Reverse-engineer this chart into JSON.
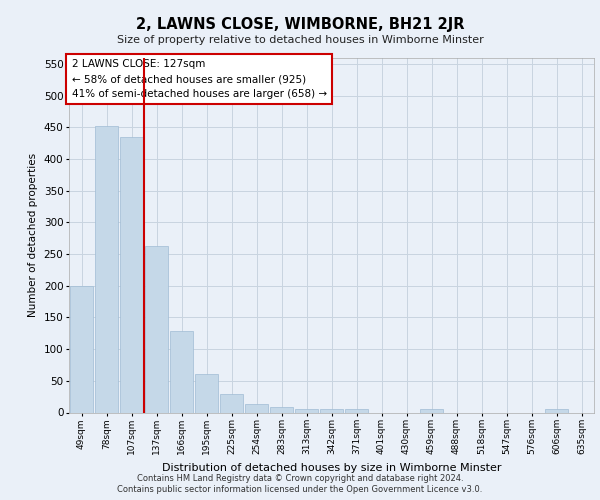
{
  "title": "2, LAWNS CLOSE, WIMBORNE, BH21 2JR",
  "subtitle": "Size of property relative to detached houses in Wimborne Minster",
  "xlabel": "Distribution of detached houses by size in Wimborne Minster",
  "ylabel": "Number of detached properties",
  "footer1": "Contains HM Land Registry data © Crown copyright and database right 2024.",
  "footer2": "Contains public sector information licensed under the Open Government Licence v3.0.",
  "categories": [
    "49sqm",
    "78sqm",
    "107sqm",
    "137sqm",
    "166sqm",
    "195sqm",
    "225sqm",
    "254sqm",
    "283sqm",
    "313sqm",
    "342sqm",
    "371sqm",
    "401sqm",
    "430sqm",
    "459sqm",
    "488sqm",
    "518sqm",
    "547sqm",
    "576sqm",
    "606sqm",
    "635sqm"
  ],
  "values": [
    199,
    452,
    435,
    263,
    128,
    61,
    29,
    14,
    8,
    5,
    5,
    5,
    0,
    0,
    5,
    0,
    0,
    0,
    0,
    5,
    0
  ],
  "bar_color": "#c5d8e8",
  "bar_edge_color": "#a0bcd4",
  "annotation_line1": "2 LAWNS CLOSE: 127sqm",
  "annotation_line2": "← 58% of detached houses are smaller (925)",
  "annotation_line3": "41% of semi-detached houses are larger (658) →",
  "annotation_box_color": "#ffffff",
  "annotation_border_color": "#cc0000",
  "vline_color": "#cc0000",
  "grid_color": "#c8d4e0",
  "bg_color": "#eaf0f8",
  "ylim_max": 560,
  "yticks": [
    0,
    50,
    100,
    150,
    200,
    250,
    300,
    350,
    400,
    450,
    500,
    550
  ]
}
